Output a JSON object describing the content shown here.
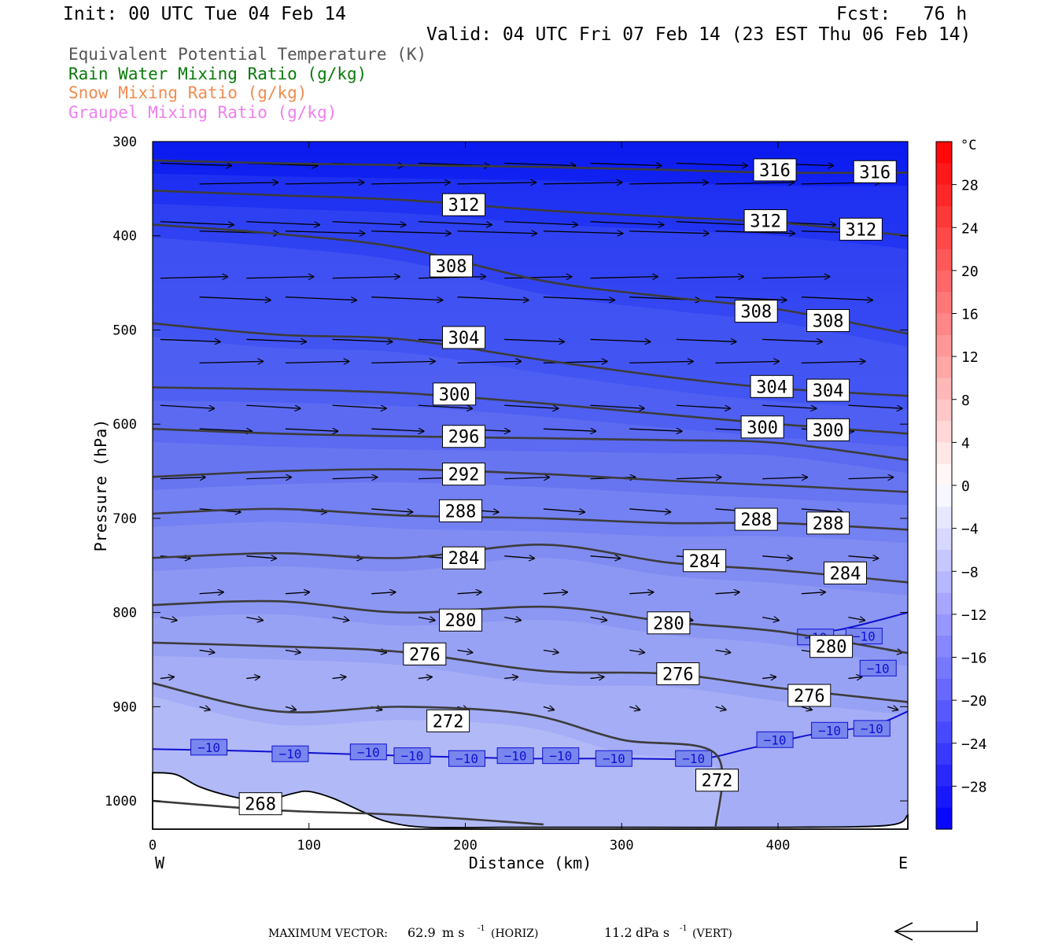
{
  "header": {
    "init": "Init: 00 UTC Tue 04 Feb 14",
    "fcst": "Fcst:   76 h",
    "valid": "Valid: 04 UTC Fri 07 Feb 14 (23 EST Thu 06 Feb 14)"
  },
  "legend": [
    {
      "label": "Equivalent Potential Temperature (K)",
      "color": "#555555"
    },
    {
      "label": "Rain Water Mixing Ratio (g/kg)",
      "color": "#0a7a0a"
    },
    {
      "label": "Snow Mixing Ratio (g/kg)",
      "color": "#f08c50"
    },
    {
      "label": "Graupel Mixing Ratio (g/kg)",
      "color": "#ee80ee"
    }
  ],
  "footer": {
    "prefix": "MAXIMUM VECTOR:",
    "horiz_value": "62.9",
    "horiz_unit": "m s",
    "horiz_sup": "-1",
    "horiz_tag": "(HORIZ)",
    "vert_value": "11.2",
    "vert_unit": "dPa s",
    "vert_sup": "-1",
    "vert_tag": "(VERT)"
  },
  "chart_data": {
    "type": "cross-section",
    "xlabel": "Distance (km)",
    "ylabel": "Pressure (hPa)",
    "xlim": [
      0,
      483
    ],
    "ylim": [
      1030,
      300
    ],
    "x_ticks": [
      0,
      100,
      200,
      300,
      400
    ],
    "y_ticks": [
      300,
      400,
      500,
      600,
      700,
      800,
      900,
      1000
    ],
    "x_left_label": "W",
    "x_right_label": "E",
    "colorbar": {
      "unit": "°C",
      "tick_labels": [
        "28",
        "24",
        "20",
        "16",
        "12",
        "8",
        "4",
        "0",
        "−4",
        "−8",
        "−12",
        "−16",
        "−20",
        "−24",
        "−28"
      ],
      "range": [
        -32,
        32
      ],
      "interval": 2
    },
    "theta_e_contours": [
      {
        "value": 316,
        "points": [
          [
            0,
            320
          ],
          [
            80,
            323
          ],
          [
            160,
            325
          ],
          [
            250,
            327
          ],
          [
            330,
            330
          ],
          [
            400,
            333
          ],
          [
            483,
            333
          ]
        ],
        "labels": [
          [
            398,
            330
          ],
          [
            462,
            332
          ]
        ]
      },
      {
        "value": 312,
        "points": [
          [
            0,
            352
          ],
          [
            80,
            357
          ],
          [
            160,
            362
          ],
          [
            250,
            373
          ],
          [
            330,
            380
          ],
          [
            400,
            386
          ],
          [
            483,
            400
          ]
        ],
        "labels": [
          [
            199,
            367
          ],
          [
            392,
            384
          ],
          [
            453,
            393
          ]
        ]
      },
      {
        "value": 308,
        "points": [
          [
            0,
            388
          ],
          [
            80,
            398
          ],
          [
            160,
            413
          ],
          [
            250,
            448
          ],
          [
            330,
            465
          ],
          [
            400,
            478
          ],
          [
            483,
            504
          ]
        ],
        "labels": [
          [
            191,
            432
          ],
          [
            386,
            480
          ],
          [
            432,
            490
          ]
        ]
      },
      {
        "value": 304,
        "points": [
          [
            0,
            493
          ],
          [
            80,
            505
          ],
          [
            160,
            510
          ],
          [
            250,
            532
          ],
          [
            330,
            550
          ],
          [
            400,
            562
          ],
          [
            483,
            570
          ]
        ],
        "labels": [
          [
            199,
            508
          ],
          [
            396,
            560
          ],
          [
            432,
            564
          ]
        ]
      },
      {
        "value": 300,
        "points": [
          [
            0,
            561
          ],
          [
            80,
            563
          ],
          [
            160,
            567
          ],
          [
            250,
            578
          ],
          [
            330,
            590
          ],
          [
            400,
            600
          ],
          [
            483,
            610
          ]
        ],
        "labels": [
          [
            193,
            568
          ],
          [
            390,
            603
          ],
          [
            432,
            606
          ]
        ]
      },
      {
        "value": 296,
        "points": [
          [
            0,
            605
          ],
          [
            80,
            610
          ],
          [
            160,
            613
          ],
          [
            250,
            615
          ],
          [
            330,
            617
          ],
          [
            400,
            620
          ],
          [
            483,
            638
          ]
        ],
        "labels": [
          [
            199,
            613
          ]
        ]
      },
      {
        "value": 292,
        "points": [
          [
            0,
            656
          ],
          [
            80,
            650
          ],
          [
            160,
            648
          ],
          [
            250,
            653
          ],
          [
            330,
            660
          ],
          [
            400,
            665
          ],
          [
            483,
            672
          ]
        ],
        "labels": [
          [
            199,
            653
          ]
        ]
      },
      {
        "value": 288,
        "points": [
          [
            0,
            695
          ],
          [
            80,
            690
          ],
          [
            160,
            697
          ],
          [
            250,
            700
          ],
          [
            330,
            705
          ],
          [
            400,
            705
          ],
          [
            483,
            712
          ]
        ],
        "labels": [
          [
            197,
            692
          ],
          [
            386,
            701
          ],
          [
            432,
            705
          ]
        ]
      },
      {
        "value": 284,
        "points": [
          [
            0,
            742
          ],
          [
            80,
            737
          ],
          [
            160,
            742
          ],
          [
            250,
            728
          ],
          [
            330,
            747
          ],
          [
            400,
            755
          ],
          [
            483,
            768
          ]
        ],
        "labels": [
          [
            199,
            742
          ],
          [
            353,
            745
          ],
          [
            443,
            758
          ]
        ]
      },
      {
        "value": 280,
        "points": [
          [
            0,
            792
          ],
          [
            80,
            788
          ],
          [
            160,
            800
          ],
          [
            255,
            794
          ],
          [
            330,
            810
          ],
          [
            400,
            820
          ],
          [
            483,
            843
          ]
        ],
        "labels": [
          [
            197,
            808
          ],
          [
            330,
            811
          ],
          [
            434,
            836
          ]
        ]
      },
      {
        "value": 276,
        "points": [
          [
            0,
            832
          ],
          [
            80,
            836
          ],
          [
            160,
            842
          ],
          [
            250,
            862
          ],
          [
            330,
            865
          ],
          [
            400,
            880
          ],
          [
            483,
            895
          ]
        ],
        "labels": [
          [
            174,
            844
          ],
          [
            336,
            865
          ],
          [
            420,
            888
          ]
        ]
      },
      {
        "value": 272,
        "points": [
          [
            0,
            875
          ],
          [
            80,
            905
          ],
          [
            160,
            900
          ],
          [
            240,
            908
          ],
          [
            300,
            935
          ],
          [
            360,
            950
          ],
          [
            360,
            1030
          ]
        ],
        "labels": [
          [
            189,
            915
          ],
          [
            361,
            978
          ]
        ]
      },
      {
        "value": 268,
        "points": [
          [
            0,
            1000
          ],
          [
            80,
            1010
          ],
          [
            160,
            1015
          ],
          [
            250,
            1025
          ]
        ],
        "labels": [
          [
            69,
            1003
          ]
        ]
      }
    ],
    "temp_minus10_labels": [
      [
        36,
        943
      ],
      [
        88,
        950
      ],
      [
        138,
        948
      ],
      [
        166,
        952
      ],
      [
        201,
        955
      ],
      [
        232,
        952
      ],
      [
        261,
        952
      ],
      [
        295,
        955
      ],
      [
        346,
        955
      ],
      [
        398,
        935
      ],
      [
        424,
        826
      ],
      [
        455,
        825
      ],
      [
        464,
        859
      ],
      [
        433,
        925
      ],
      [
        460,
        923
      ]
    ]
  }
}
